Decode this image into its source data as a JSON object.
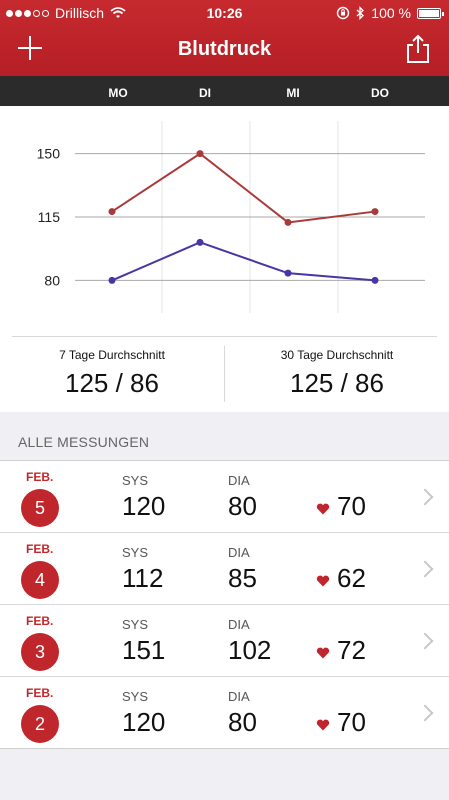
{
  "status_bar": {
    "carrier": "Drillisch",
    "time": "10:26",
    "battery": "100 %"
  },
  "nav": {
    "title": "Blutdruck",
    "add_icon": "plus-icon",
    "share_icon": "share-icon"
  },
  "days": [
    "MO",
    "DI",
    "MI",
    "DO"
  ],
  "chart_data": {
    "type": "line",
    "categories": [
      "MO",
      "DI",
      "MI",
      "DO"
    ],
    "series": [
      {
        "values": [
          118,
          150,
          112,
          118
        ],
        "color": "#a93a3a"
      },
      {
        "values": [
          80,
          101,
          84,
          80
        ],
        "color": "#4a35a6"
      }
    ],
    "yticks": [
      150,
      115,
      80
    ],
    "ylim": [
      62,
      168
    ],
    "grid": true
  },
  "stats": {
    "seven": {
      "label": "7 Tage Durchschnitt",
      "value": "125 / 86"
    },
    "thirty": {
      "label": "30 Tage Durchschnitt",
      "value": "125 / 86"
    }
  },
  "section_title": "ALLE MESSUNGEN",
  "col_labels": {
    "sys": "SYS",
    "dia": "DIA"
  },
  "measurements": [
    {
      "month": "FEB.",
      "day": "5",
      "sys": "120",
      "dia": "80",
      "pulse": "70"
    },
    {
      "month": "FEB.",
      "day": "4",
      "sys": "112",
      "dia": "85",
      "pulse": "62"
    },
    {
      "month": "FEB.",
      "day": "3",
      "sys": "151",
      "dia": "102",
      "pulse": "72"
    },
    {
      "month": "FEB.",
      "day": "2",
      "sys": "120",
      "dia": "80",
      "pulse": "70"
    }
  ]
}
